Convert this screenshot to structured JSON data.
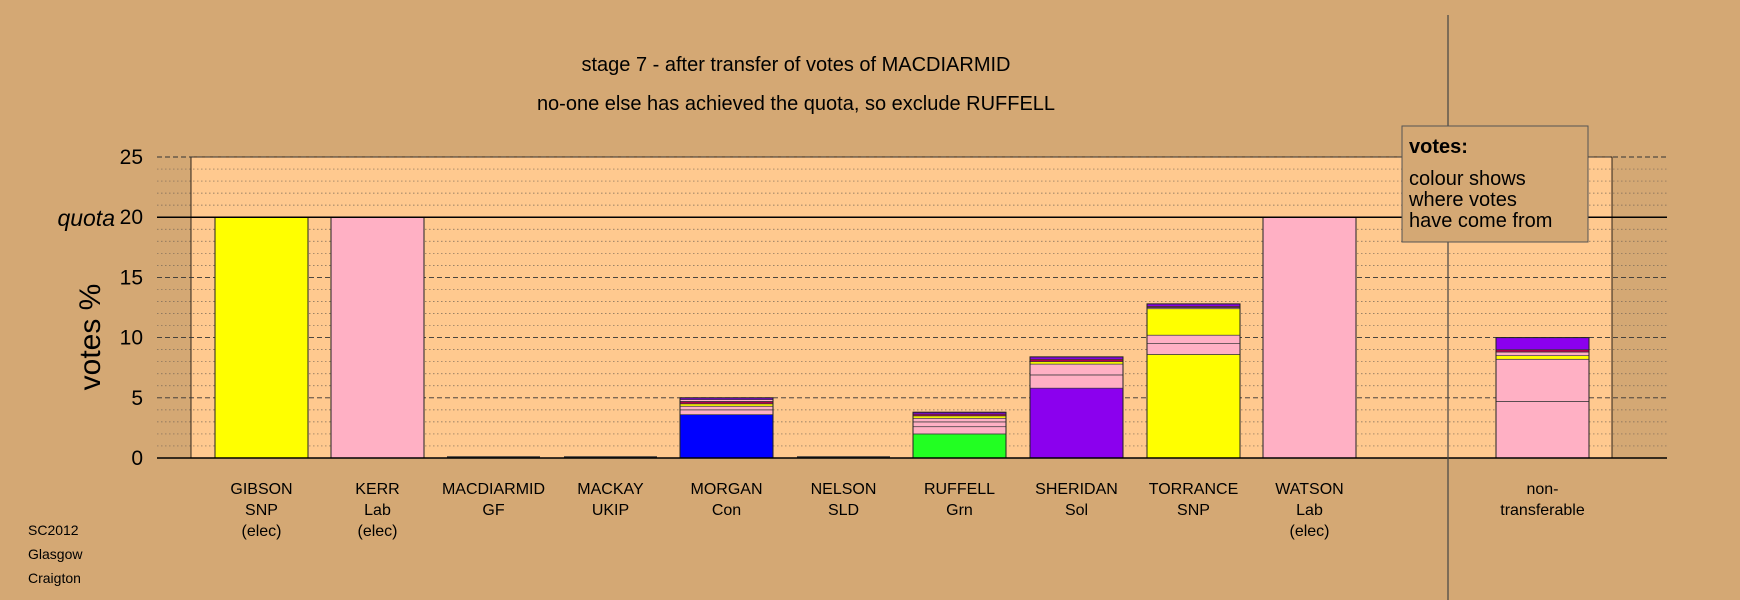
{
  "chart_data": {
    "type": "bar",
    "title": "stage 7 - after transfer of votes of MACDIARMID",
    "subtitle": "no-one else has achieved the quota, so exclude RUFFELL",
    "ylabel": "votes %",
    "ylim": [
      0,
      25
    ],
    "yticks": [
      "0",
      "5",
      "10",
      "15",
      "20",
      "25"
    ],
    "quota_label": "quota",
    "quota": 20,
    "grid": true,
    "stacked": true,
    "colors": {
      "background": "#D4A874",
      "plot_area": "#FFC98F",
      "SNP": "#FFFF00",
      "Lab": "#FFB0C4",
      "Con": "#0000FF",
      "Grn": "#22FF22",
      "Sol": "#8B00EE",
      "GF": "#B0004B"
    },
    "legend": {
      "heading": "votes:",
      "lines": [
        "colour shows",
        "where votes",
        "have come from"
      ]
    },
    "footer": [
      "SC2012",
      "Glasgow",
      "Craigton"
    ],
    "categories": [
      {
        "name": "GIBSON",
        "party": "SNP",
        "note": "(elec)",
        "total": 20,
        "segments": [
          {
            "value": 20,
            "color": "#FFFF00"
          }
        ]
      },
      {
        "name": "KERR",
        "party": "Lab",
        "note": "(elec)",
        "total": 20,
        "segments": [
          {
            "value": 20,
            "color": "#FFB0C4"
          }
        ]
      },
      {
        "name": "MACDIARMID",
        "party": "GF",
        "note": "",
        "total": 0,
        "segments": []
      },
      {
        "name": "MACKAY",
        "party": "UKIP",
        "note": "",
        "total": 0,
        "segments": []
      },
      {
        "name": "MORGAN",
        "party": "Con",
        "note": "",
        "total": 5.0,
        "segments": [
          {
            "value": 3.6,
            "color": "#0000FF"
          },
          {
            "value": 0.4,
            "color": "#FFB0C4"
          },
          {
            "value": 0.3,
            "color": "#FFB0C4"
          },
          {
            "value": 0.2,
            "color": "#FFFF00"
          },
          {
            "value": 0.2,
            "color": "#B0004B"
          },
          {
            "value": 0.15,
            "color": "#FFB0C4"
          },
          {
            "value": 0.15,
            "color": "#8B00EE"
          }
        ]
      },
      {
        "name": "NELSON",
        "party": "SLD",
        "note": "",
        "total": 0,
        "segments": []
      },
      {
        "name": "RUFFELL",
        "party": "Grn",
        "note": "",
        "total": 3.8,
        "segments": [
          {
            "value": 2.0,
            "color": "#22FF22"
          },
          {
            "value": 0.6,
            "color": "#FFB0C4"
          },
          {
            "value": 0.4,
            "color": "#FFB0C4"
          },
          {
            "value": 0.3,
            "color": "#FFB0C4"
          },
          {
            "value": 0.2,
            "color": "#FFFF00"
          },
          {
            "value": 0.15,
            "color": "#B0004B"
          },
          {
            "value": 0.15,
            "color": "#8B00EE"
          }
        ]
      },
      {
        "name": "SHERIDAN",
        "party": "Sol",
        "note": "",
        "total": 8.4,
        "segments": [
          {
            "value": 5.8,
            "color": "#8B00EE"
          },
          {
            "value": 1.1,
            "color": "#FFB0C4"
          },
          {
            "value": 0.9,
            "color": "#FFB0C4"
          },
          {
            "value": 0.2,
            "color": "#FFFF00"
          },
          {
            "value": 0.2,
            "color": "#B0004B"
          },
          {
            "value": 0.2,
            "color": "#8B00EE"
          }
        ]
      },
      {
        "name": "TORRANCE",
        "party": "SNP",
        "note": "",
        "total": 12.8,
        "segments": [
          {
            "value": 8.6,
            "color": "#FFFF00"
          },
          {
            "value": 0.9,
            "color": "#FFB0C4"
          },
          {
            "value": 0.7,
            "color": "#FFB0C4"
          },
          {
            "value": 2.2,
            "color": "#FFFF00"
          },
          {
            "value": 0.1,
            "color": "#FFB0C4"
          },
          {
            "value": 0.1,
            "color": "#B0004B"
          },
          {
            "value": 0.2,
            "color": "#8B00EE"
          }
        ]
      },
      {
        "name": "WATSON",
        "party": "Lab",
        "note": "(elec)",
        "total": 20,
        "segments": [
          {
            "value": 20,
            "color": "#FFB0C4"
          }
        ]
      },
      {
        "name": "non-",
        "party": "transferable",
        "note": "",
        "total": 10.0,
        "segments": [
          {
            "value": 4.7,
            "color": "#FFB0C4"
          },
          {
            "value": 3.5,
            "color": "#FFB0C4"
          },
          {
            "value": 0.3,
            "color": "#FFFF00"
          },
          {
            "value": 0.3,
            "color": "#FFB0C4"
          },
          {
            "value": 0.2,
            "color": "#B0004B"
          },
          {
            "value": 1.0,
            "color": "#8B00EE"
          }
        ]
      }
    ]
  }
}
